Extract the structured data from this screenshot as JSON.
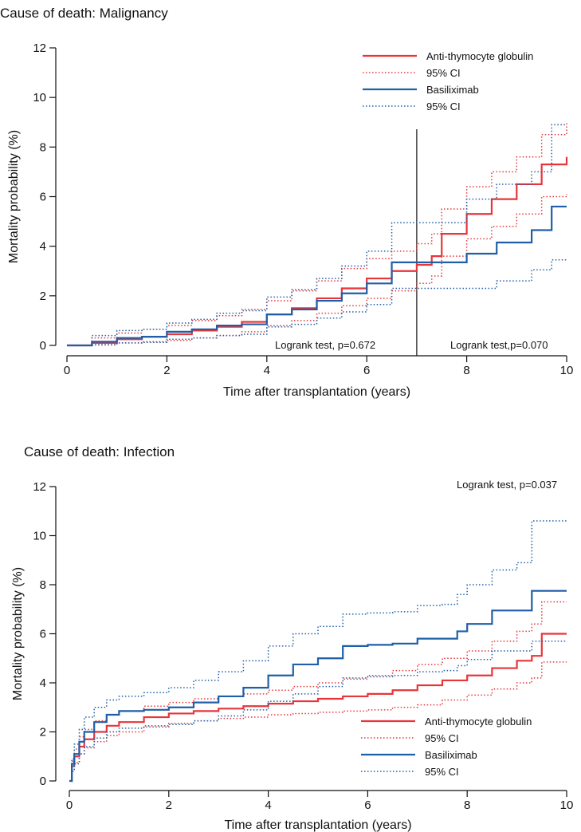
{
  "chart_data": [
    {
      "type": "line",
      "title": "Cause of death: Malignancy",
      "xlabel": "Time after transplantation (years)",
      "ylabel": "Mortality probability (%)",
      "xlim": [
        0,
        10
      ],
      "ylim": [
        0,
        12
      ],
      "xticks": [
        "0",
        "2",
        "4",
        "6",
        "8",
        "10"
      ],
      "yticks": [
        "0",
        "2",
        "4",
        "6",
        "8",
        "10",
        "12"
      ],
      "grid": false,
      "legend_position": "top-right",
      "vertical_marker_x": 7,
      "annotations": [
        "Logrank test, p=0.672",
        "Logrank test,p=0.070"
      ],
      "series": [
        {
          "name": "Anti-thymocyte globulin",
          "color": "#e8353a",
          "style": "solid",
          "x": [
            0,
            0.5,
            1,
            1.5,
            2,
            2.5,
            3,
            3.5,
            4,
            4.5,
            5,
            5.5,
            6,
            6.5,
            7,
            7.3,
            7.5,
            8,
            8.5,
            9,
            9.5,
            10
          ],
          "y": [
            0,
            0.1,
            0.25,
            0.35,
            0.45,
            0.6,
            0.75,
            0.95,
            1.25,
            1.5,
            1.9,
            2.3,
            2.7,
            3.0,
            3.25,
            3.6,
            4.5,
            5.3,
            5.9,
            6.5,
            7.3,
            7.6
          ]
        },
        {
          "name": "95% CI",
          "color": "#e8353a",
          "style": "dotted",
          "x": [
            0,
            0.5,
            1,
            1.5,
            2,
            2.5,
            3,
            3.5,
            4,
            4.5,
            5,
            5.5,
            6,
            6.5,
            7,
            7.3,
            7.5,
            8,
            8.5,
            9,
            9.5,
            10
          ],
          "y": [
            0,
            0.3,
            0.5,
            0.65,
            0.8,
            1.0,
            1.2,
            1.45,
            1.8,
            2.2,
            2.6,
            3.1,
            3.5,
            3.8,
            4.1,
            4.5,
            5.5,
            6.4,
            7.0,
            7.6,
            8.5,
            9.0
          ]
        },
        {
          "name": "",
          "color": "#e8353a",
          "style": "dotted",
          "x": [
            0,
            0.5,
            1,
            1.5,
            2,
            2.5,
            3,
            3.5,
            4,
            4.5,
            5,
            5.5,
            6,
            6.5,
            7,
            7.3,
            7.5,
            8,
            8.5,
            9,
            9.5,
            10
          ],
          "y": [
            0,
            0.03,
            0.1,
            0.15,
            0.2,
            0.3,
            0.4,
            0.55,
            0.8,
            1.0,
            1.3,
            1.6,
            1.9,
            2.2,
            2.5,
            2.8,
            3.6,
            4.3,
            4.8,
            5.3,
            6.0,
            6.1
          ]
        },
        {
          "name": "Basiliximab",
          "color": "#1f5fa8",
          "style": "solid",
          "x": [
            0,
            0.5,
            1,
            1.5,
            2,
            2.5,
            3,
            3.5,
            4,
            4.5,
            5,
            5.5,
            6,
            6.5,
            7,
            7.5,
            8,
            8.3,
            8.6,
            9.3,
            9.7,
            10
          ],
          "y": [
            0,
            0.15,
            0.3,
            0.35,
            0.55,
            0.65,
            0.8,
            0.85,
            1.25,
            1.45,
            1.8,
            2.1,
            2.5,
            3.35,
            3.35,
            3.35,
            3.7,
            3.7,
            4.15,
            4.65,
            5.6,
            5.6
          ]
        },
        {
          "name": "95% CI",
          "color": "#1f5fa8",
          "style": "dotted",
          "x": [
            0,
            0.5,
            1,
            1.5,
            2,
            2.5,
            3,
            3.5,
            4,
            4.5,
            5,
            5.5,
            6,
            6.5,
            7,
            7.5,
            8,
            8.3,
            8.6,
            9.3,
            9.7,
            10
          ],
          "y": [
            0,
            0.4,
            0.6,
            0.65,
            0.9,
            1.05,
            1.3,
            1.4,
            1.95,
            2.25,
            2.7,
            3.2,
            3.8,
            4.95,
            4.95,
            4.95,
            5.9,
            5.9,
            6.5,
            7.0,
            8.9,
            8.9
          ]
        },
        {
          "name": "",
          "color": "#1f5fa8",
          "style": "dotted",
          "x": [
            0,
            0.5,
            1,
            1.5,
            2,
            2.5,
            3,
            3.5,
            4,
            4.5,
            5,
            5.5,
            6,
            6.5,
            7,
            7.5,
            8,
            8.3,
            8.6,
            9.3,
            9.7,
            10
          ],
          "y": [
            0,
            0.02,
            0.1,
            0.12,
            0.25,
            0.3,
            0.4,
            0.45,
            0.75,
            0.85,
            1.1,
            1.35,
            1.65,
            2.3,
            2.3,
            2.3,
            2.3,
            2.3,
            2.6,
            3.05,
            3.45,
            3.45
          ]
        }
      ]
    },
    {
      "type": "line",
      "title": "Cause of death: Infection",
      "xlabel": "Time after transplantation (years)",
      "ylabel": "Mortality probability (%)",
      "xlim": [
        0,
        10
      ],
      "ylim": [
        0,
        12
      ],
      "xticks": [
        "0",
        "2",
        "4",
        "6",
        "8",
        "10"
      ],
      "yticks": [
        "0",
        "2",
        "4",
        "6",
        "8",
        "10",
        "12"
      ],
      "grid": false,
      "legend_position": "bottom-right",
      "annotations": [
        "Logrank test, p=0.037"
      ],
      "series": [
        {
          "name": "Anti-thymocyte globulin",
          "color": "#e8353a",
          "style": "solid",
          "x": [
            0,
            0.05,
            0.1,
            0.2,
            0.3,
            0.5,
            0.75,
            1,
            1.5,
            2,
            2.5,
            3,
            3.5,
            4,
            4.5,
            5,
            5.5,
            6,
            6.5,
            7,
            7.5,
            8,
            8.5,
            9,
            9.3,
            9.5,
            10
          ],
          "y": [
            0,
            0.6,
            1.0,
            1.4,
            1.7,
            2.0,
            2.25,
            2.4,
            2.6,
            2.75,
            2.85,
            2.95,
            3.05,
            3.15,
            3.25,
            3.35,
            3.45,
            3.55,
            3.7,
            3.9,
            4.1,
            4.3,
            4.6,
            4.9,
            5.1,
            6.0,
            6.0
          ]
        },
        {
          "name": "95% CI",
          "color": "#e8353a",
          "style": "dotted",
          "x": [
            0,
            0.05,
            0.1,
            0.2,
            0.3,
            0.5,
            0.75,
            1,
            1.5,
            2,
            2.5,
            3,
            3.5,
            4,
            4.5,
            5,
            5.5,
            6,
            6.5,
            7,
            7.5,
            8,
            8.5,
            9,
            9.3,
            9.5,
            10
          ],
          "y": [
            0,
            0.8,
            1.3,
            1.8,
            2.1,
            2.45,
            2.7,
            2.85,
            3.05,
            3.2,
            3.35,
            3.45,
            3.55,
            3.7,
            3.85,
            4.0,
            4.15,
            4.3,
            4.5,
            4.75,
            5.0,
            5.3,
            5.7,
            6.1,
            6.4,
            7.3,
            7.3
          ]
        },
        {
          "name": "",
          "color": "#e8353a",
          "style": "dotted",
          "x": [
            0,
            0.05,
            0.1,
            0.2,
            0.3,
            0.5,
            0.75,
            1,
            1.5,
            2,
            2.5,
            3,
            3.5,
            4,
            4.5,
            5,
            5.5,
            6,
            6.5,
            7,
            7.5,
            8,
            8.5,
            9,
            9.3,
            9.5,
            10
          ],
          "y": [
            0,
            0.4,
            0.75,
            1.1,
            1.35,
            1.6,
            1.85,
            2.0,
            2.2,
            2.35,
            2.45,
            2.55,
            2.6,
            2.7,
            2.75,
            2.8,
            2.85,
            2.9,
            3.0,
            3.1,
            3.3,
            3.5,
            3.75,
            4.0,
            4.2,
            4.85,
            4.85
          ]
        },
        {
          "name": "Basiliximab",
          "color": "#1f5fa8",
          "style": "solid",
          "x": [
            0,
            0.05,
            0.1,
            0.2,
            0.3,
            0.5,
            0.75,
            1,
            1.5,
            2,
            2.5,
            3,
            3.5,
            4,
            4.5,
            5,
            5.5,
            6,
            6.5,
            7,
            7.5,
            7.8,
            8,
            8.5,
            9,
            9.3,
            10
          ],
          "y": [
            0,
            0.7,
            1.1,
            1.6,
            2.0,
            2.4,
            2.7,
            2.85,
            2.9,
            3.0,
            3.2,
            3.45,
            3.8,
            4.3,
            4.75,
            5.0,
            5.5,
            5.55,
            5.6,
            5.8,
            5.8,
            6.1,
            6.4,
            6.95,
            6.95,
            7.75,
            7.75
          ]
        },
        {
          "name": "95% CI",
          "color": "#1f5fa8",
          "style": "dotted",
          "x": [
            0,
            0.05,
            0.1,
            0.2,
            0.3,
            0.5,
            0.75,
            1,
            1.5,
            2,
            2.5,
            3,
            3.5,
            4,
            4.5,
            5,
            5.5,
            6,
            6.5,
            7,
            7.5,
            7.8,
            8,
            8.5,
            9,
            9.3,
            10
          ],
          "y": [
            0,
            0.9,
            1.5,
            2.1,
            2.6,
            3.0,
            3.3,
            3.45,
            3.6,
            3.8,
            4.1,
            4.45,
            4.9,
            5.5,
            6.0,
            6.3,
            6.8,
            6.85,
            6.9,
            7.15,
            7.2,
            7.6,
            8.0,
            8.6,
            8.9,
            10.6,
            10.6
          ]
        },
        {
          "name": "",
          "color": "#1f5fa8",
          "style": "dotted",
          "x": [
            0,
            0.05,
            0.1,
            0.2,
            0.3,
            0.5,
            0.75,
            1,
            1.5,
            2,
            2.5,
            3,
            3.5,
            4,
            4.5,
            5,
            5.5,
            6,
            6.5,
            7,
            7.5,
            7.8,
            8,
            8.5,
            9,
            9.3,
            10
          ],
          "y": [
            0,
            0.4,
            0.7,
            1.1,
            1.4,
            1.75,
            2.0,
            2.15,
            2.25,
            2.3,
            2.45,
            2.65,
            2.9,
            3.25,
            3.55,
            3.85,
            4.2,
            4.25,
            4.3,
            4.45,
            4.5,
            4.7,
            4.95,
            5.3,
            5.3,
            5.7,
            5.7
          ]
        }
      ]
    }
  ]
}
